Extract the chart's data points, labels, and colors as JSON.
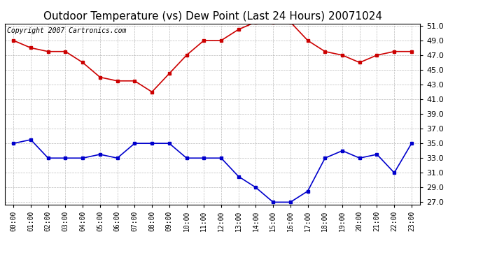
{
  "title": "Outdoor Temperature (vs) Dew Point (Last 24 Hours) 20071024",
  "copyright_text": "Copyright 2007 Cartronics.com",
  "x_labels": [
    "00:00",
    "01:00",
    "02:00",
    "03:00",
    "04:00",
    "05:00",
    "06:00",
    "07:00",
    "08:00",
    "09:00",
    "10:00",
    "11:00",
    "12:00",
    "13:00",
    "14:00",
    "15:00",
    "16:00",
    "17:00",
    "18:00",
    "19:00",
    "20:00",
    "21:00",
    "22:00",
    "23:00"
  ],
  "temp_data": [
    49.0,
    48.0,
    47.5,
    47.5,
    46.0,
    44.0,
    43.5,
    43.5,
    42.0,
    44.5,
    47.0,
    49.0,
    49.0,
    50.5,
    51.5,
    51.5,
    51.5,
    49.0,
    47.5,
    47.0,
    46.0,
    47.0,
    47.5,
    47.5
  ],
  "dew_data": [
    35.0,
    35.5,
    33.0,
    33.0,
    33.0,
    33.5,
    33.0,
    35.0,
    35.0,
    35.0,
    33.0,
    33.0,
    33.0,
    30.5,
    29.0,
    27.0,
    27.0,
    28.5,
    33.0,
    34.0,
    33.0,
    33.5,
    31.0,
    35.0
  ],
  "temp_color": "#cc0000",
  "dew_color": "#0000cc",
  "ylim_min": 27.0,
  "ylim_max": 51.0,
  "yticks": [
    27.0,
    29.0,
    31.0,
    33.0,
    35.0,
    37.0,
    39.0,
    41.0,
    43.0,
    45.0,
    47.0,
    49.0,
    51.0
  ],
  "bg_color": "#ffffff",
  "grid_color": "#aaaaaa",
  "title_fontsize": 11,
  "copyright_fontsize": 7,
  "marker": "s",
  "marker_size": 3,
  "linewidth": 1.2
}
